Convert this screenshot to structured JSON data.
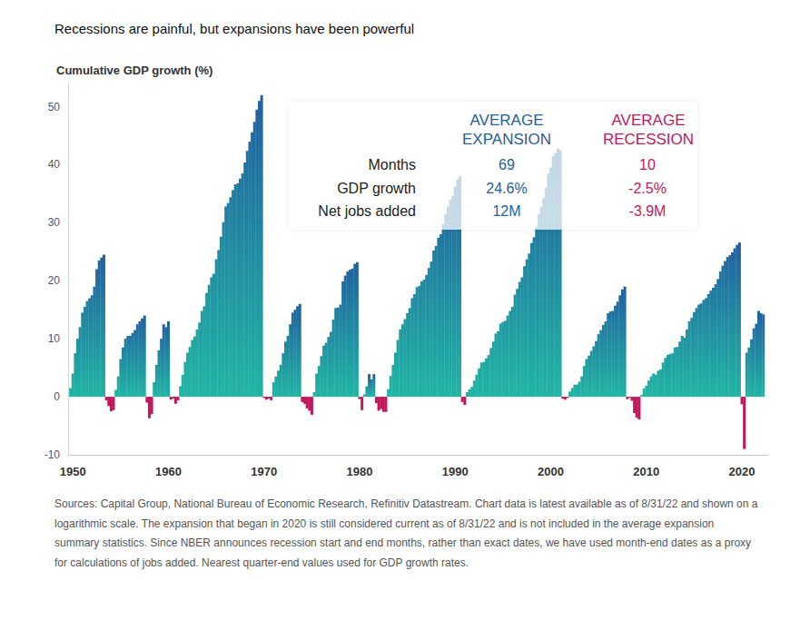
{
  "chart_data": {
    "type": "bar",
    "title": "Recessions are painful, but expansions have been powerful",
    "y_label": "Cumulative GDP growth (%)",
    "xlim": [
      1949.5,
      2022.75
    ],
    "xticks": [
      1950,
      1960,
      1970,
      1980,
      1990,
      2000,
      2010,
      2020
    ],
    "ylim": [
      -10,
      54
    ],
    "yticks": [
      -10,
      0,
      10,
      20,
      30,
      40,
      50
    ],
    "grid": false,
    "series": [
      {
        "color": "#22609f",
        "x": [
          1949.75,
          1950,
          1950.25,
          1950.5,
          1950.75,
          1951,
          1951.25,
          1951.5,
          1951.75,
          1952,
          1952.25,
          1952.5,
          1952.75,
          1953,
          1953.25,
          1954.5,
          1954.75,
          1955,
          1955.25,
          1955.5,
          1955.75,
          1956,
          1956.25,
          1956.5,
          1956.75,
          1957,
          1957.25,
          1957.5,
          1958.5,
          1958.75,
          1959,
          1959.25,
          1959.5,
          1959.75,
          1960,
          1961.25,
          1961.5,
          1961.75,
          1962,
          1962.25,
          1962.5,
          1962.75,
          1963,
          1963.25,
          1963.5,
          1963.75,
          1964,
          1964.25,
          1964.5,
          1964.75,
          1965,
          1965.25,
          1965.5,
          1965.75,
          1966,
          1966.25,
          1966.5,
          1966.75,
          1967,
          1967.25,
          1967.5,
          1967.75,
          1968,
          1968.25,
          1968.5,
          1968.75,
          1969,
          1969.25,
          1969.5,
          1969.75,
          1971,
          1971.25,
          1971.5,
          1971.75,
          1972,
          1972.25,
          1972.5,
          1972.75,
          1973,
          1973.25,
          1973.5,
          1973.75,
          1975.25,
          1975.5,
          1975.75,
          1976,
          1976.25,
          1976.5,
          1976.75,
          1977,
          1977.25,
          1977.5,
          1977.75,
          1978,
          1978.25,
          1978.5,
          1978.75,
          1979,
          1979.25,
          1979.5,
          1979.75,
          1980.5,
          1980.75,
          1981,
          1981.25,
          1981.5,
          1983,
          1983.25,
          1983.5,
          1983.75,
          1984,
          1984.25,
          1984.5,
          1984.75,
          1985,
          1985.25,
          1985.5,
          1985.75,
          1986,
          1986.25,
          1986.5,
          1986.75,
          1987,
          1987.25,
          1987.5,
          1987.75,
          1988,
          1988.25,
          1988.5,
          1988.75,
          1989,
          1989.25,
          1989.5,
          1989.75,
          1990,
          1990.25,
          1990.5,
          1991.25,
          1991.5,
          1991.75,
          1992,
          1992.25,
          1992.5,
          1992.75,
          1993,
          1993.25,
          1993.5,
          1993.75,
          1994,
          1994.25,
          1994.5,
          1994.75,
          1995,
          1995.25,
          1995.5,
          1995.75,
          1996,
          1996.25,
          1996.5,
          1996.75,
          1997,
          1997.25,
          1997.5,
          1997.75,
          1998,
          1998.25,
          1998.5,
          1998.75,
          1999,
          1999.25,
          1999.5,
          1999.75,
          2000,
          2000.25,
          2000.5,
          2000.75,
          2001,
          2002,
          2002.25,
          2002.5,
          2002.75,
          2003,
          2003.25,
          2003.5,
          2003.75,
          2004,
          2004.25,
          2004.5,
          2004.75,
          2005,
          2005.25,
          2005.5,
          2005.75,
          2006,
          2006.25,
          2006.5,
          2006.75,
          2007,
          2007.25,
          2007.5,
          2007.75,
          2009.5,
          2009.75,
          2010,
          2010.25,
          2010.5,
          2010.75,
          2011,
          2011.25,
          2011.5,
          2011.75,
          2012,
          2012.25,
          2012.5,
          2012.75,
          2013,
          2013.25,
          2013.5,
          2013.75,
          2014,
          2014.25,
          2014.5,
          2014.75,
          2015,
          2015.25,
          2015.5,
          2015.75,
          2016,
          2016.25,
          2016.5,
          2016.75,
          2017,
          2017.25,
          2017.5,
          2017.75,
          2018,
          2018.25,
          2018.5,
          2018.75,
          2019,
          2019.25,
          2019.5,
          2019.75,
          2020.5,
          2020.75,
          2021,
          2021.25,
          2021.5,
          2021.75,
          2022,
          2022.25
        ],
        "values": [
          1.5,
          4,
          7.5,
          10,
          12,
          14.5,
          15.5,
          16.5,
          17,
          17.5,
          19,
          22,
          23.5,
          24,
          24.5,
          1.2,
          3.5,
          6.5,
          8.5,
          10,
          10.5,
          10.5,
          11,
          11.5,
          12.5,
          13,
          13.5,
          14,
          2.5,
          5.5,
          8,
          10,
          12.5,
          12,
          13,
          1.8,
          3.8,
          6.0,
          7.6,
          8.6,
          9.8,
          10.4,
          11.6,
          12.8,
          14.8,
          15.6,
          17.9,
          19.3,
          20.6,
          21.2,
          23.7,
          25.3,
          27.6,
          30.1,
          32.8,
          33.4,
          34.4,
          35.6,
          36.6,
          36.8,
          37.6,
          38.5,
          40.4,
          42.4,
          44.0,
          45.6,
          47.4,
          49.5,
          51.0,
          52.0,
          2.5,
          3.5,
          4.5,
          5.5,
          7.5,
          9.5,
          10.5,
          12.5,
          14.5,
          15.0,
          15.6,
          16.0,
          0.8,
          4.0,
          5.3,
          7.0,
          8.8,
          9.3,
          10.3,
          11.2,
          13.3,
          15.3,
          15.4,
          15.9,
          19.9,
          20.9,
          21.6,
          21.9,
          22.1,
          22.9,
          23.2,
          0.4,
          1.8,
          3.9,
          3.0,
          3.9,
          1.3,
          3.6,
          5.5,
          7.6,
          9.8,
          11.6,
          12.5,
          13.4,
          14.4,
          15.3,
          17.0,
          17.7,
          18.9,
          19.1,
          19.9,
          20.2,
          21.0,
          22.2,
          23.3,
          25.2,
          26.0,
          27.4,
          28.0,
          29.8,
          31.5,
          32.8,
          34.0,
          34.6,
          36.2,
          37.4,
          38.0,
          0.8,
          1.3,
          1.7,
          2.8,
          3.8,
          4.9,
          5.9,
          6.0,
          6.6,
          7.2,
          8.4,
          9.5,
          10.9,
          11.3,
          12.6,
          12.9,
          13.1,
          14.0,
          14.8,
          15.5,
          17.6,
          18.6,
          19.8,
          20.6,
          22.5,
          23.7,
          24.7,
          26.5,
          27.5,
          29.2,
          31.5,
          32.7,
          34.2,
          36.0,
          38.5,
          39.5,
          41.5,
          42.0,
          42.8,
          42.5,
          0.9,
          1.5,
          2.1,
          2.1,
          2.6,
          3.5,
          5.3,
          6.5,
          7.1,
          7.9,
          8.7,
          9.6,
          10.8,
          11.5,
          12.4,
          13.0,
          14.4,
          14.7,
          14.8,
          15.7,
          16.4,
          17.5,
          18.5,
          19.0,
          0.3,
          1.4,
          1.9,
          2.8,
          3.5,
          4.0,
          3.8,
          4.5,
          4.7,
          5.9,
          6.7,
          7.2,
          7.4,
          7.5,
          8.5,
          8.6,
          9.5,
          10.5,
          10.2,
          11.6,
          13.0,
          13.6,
          14.6,
          15.3,
          15.9,
          16.1,
          16.7,
          17.0,
          17.7,
          18.3,
          18.8,
          19.4,
          20.3,
          21.6,
          22.6,
          23.4,
          24.1,
          24.4,
          24.9,
          25.6,
          26.2,
          26.6,
          7.6,
          8.5,
          9.9,
          11.8,
          12.6,
          14.8,
          14.4,
          14.2
        ]
      },
      {
        "color": "#c2185b",
        "x": [
          1953.5,
          1953.75,
          1954,
          1954.25,
          1957.75,
          1958,
          1958.25,
          1960.25,
          1960.5,
          1960.75,
          1961,
          1970,
          1970.25,
          1970.5,
          1970.75,
          1974,
          1974.25,
          1974.5,
          1974.75,
          1975,
          1980,
          1980.25,
          1981.75,
          1982,
          1982.25,
          1982.5,
          1982.75,
          1990.75,
          1991,
          2001.25,
          2001.5,
          2001.75,
          2008,
          2008.25,
          2008.5,
          2008.75,
          2009,
          2009.25,
          2020,
          2020.25
        ],
        "values": [
          -0.6,
          -1.6,
          -2.5,
          -2.3,
          -1.0,
          -3.7,
          -3.0,
          -0.5,
          -0.3,
          -1.2,
          -0.6,
          -0.2,
          -0.5,
          -0.3,
          -0.6,
          -0.9,
          -1.2,
          -2.0,
          -2.4,
          -3.1,
          -0.4,
          -2.3,
          -1.1,
          -2.4,
          -2.1,
          -2.6,
          -2.6,
          -0.9,
          -1.4,
          -0.3,
          -0.5,
          -0.2,
          -0.4,
          -0.2,
          -0.7,
          -2.8,
          -3.6,
          -3.9,
          -1.3,
          -9.0
        ]
      }
    ],
    "annotations": {
      "columns": [
        "AVERAGE EXPANSION",
        "AVERAGE RECESSION"
      ],
      "rows": [
        {
          "label": "Months",
          "values": [
            "69",
            "10"
          ]
        },
        {
          "label": "GDP growth",
          "values": [
            "24.6%",
            "-2.5%"
          ]
        },
        {
          "label": "Net jobs added",
          "values": [
            "12M",
            "-3.9M"
          ]
        }
      ]
    },
    "footnote": "Sources: Capital Group, National Bureau of Economic Research, Refinitiv Datastream. Chart data is latest available as of 8/31/22 and shown on a logarithmic scale. The expansion that began in 2020 is still considered current as of 8/31/22 and is not included in the average expansion summary statistics. Since NBER announces recession start and end months, rather than exact dates, we have used month-end dates as a proxy for calculations of jobs added. Nearest quarter-end values used for GDP growth rates."
  }
}
